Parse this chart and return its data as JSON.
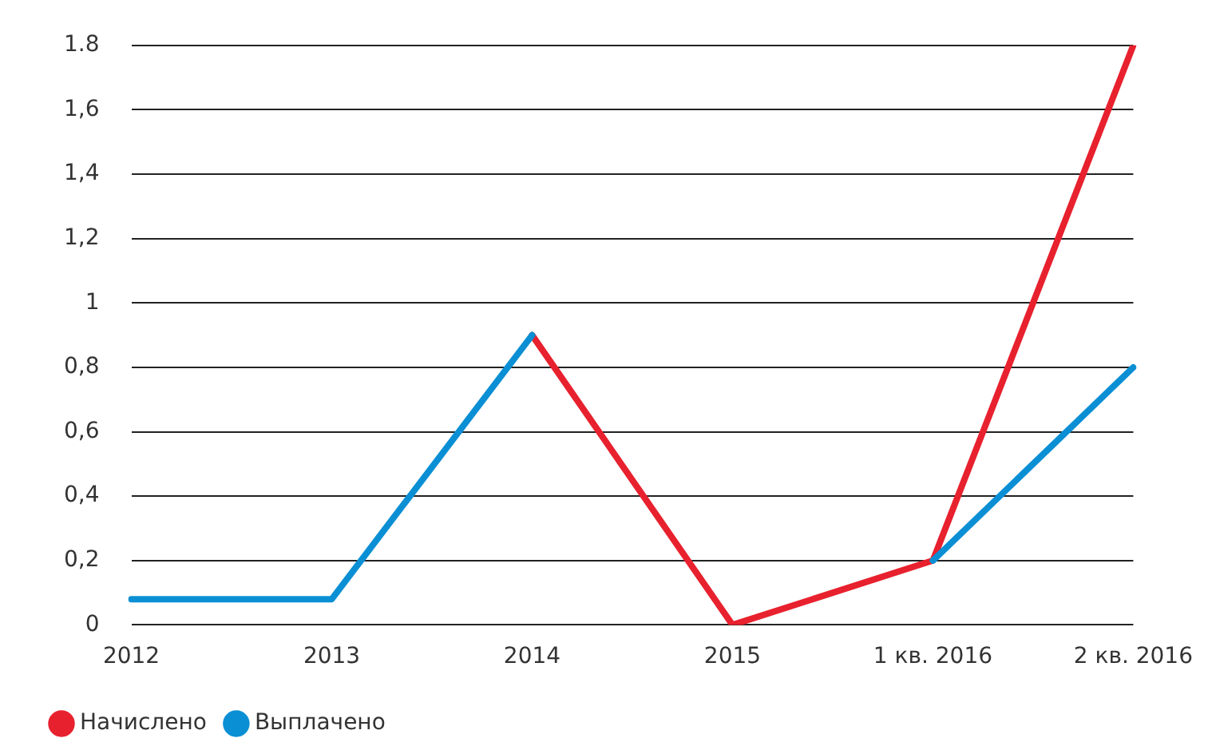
{
  "chart_data": {
    "type": "line",
    "categories": [
      "2012",
      "2013",
      "2014",
      "2015",
      "1 кв. 2016",
      "2 кв. 2016"
    ],
    "series": [
      {
        "name": "Начислено",
        "color": "#e8212e",
        "values": [
          null,
          null,
          0.9,
          0,
          0.2,
          1.8
        ]
      },
      {
        "name": "Выплачено",
        "color": "#0a8fd4",
        "values": [
          0.08,
          0.08,
          0.9,
          null,
          0.2,
          0.8
        ]
      }
    ],
    "ylim": [
      0,
      1.8
    ],
    "yticks": [
      {
        "value": 0,
        "label": "0"
      },
      {
        "value": 0.2,
        "label": "0,2"
      },
      {
        "value": 0.4,
        "label": "0,4"
      },
      {
        "value": 0.6,
        "label": "0,6"
      },
      {
        "value": 0.8,
        "label": "0,8"
      },
      {
        "value": 1,
        "label": "1"
      },
      {
        "value": 1.2,
        "label": "1,2"
      },
      {
        "value": 1.4,
        "label": "1,4"
      },
      {
        "value": 1.6,
        "label": "1,6"
      },
      {
        "value": 1.8,
        "label": "1.8"
      }
    ],
    "grid": "y",
    "legend": "bottom left",
    "marker": "none",
    "line_style": "solid"
  }
}
